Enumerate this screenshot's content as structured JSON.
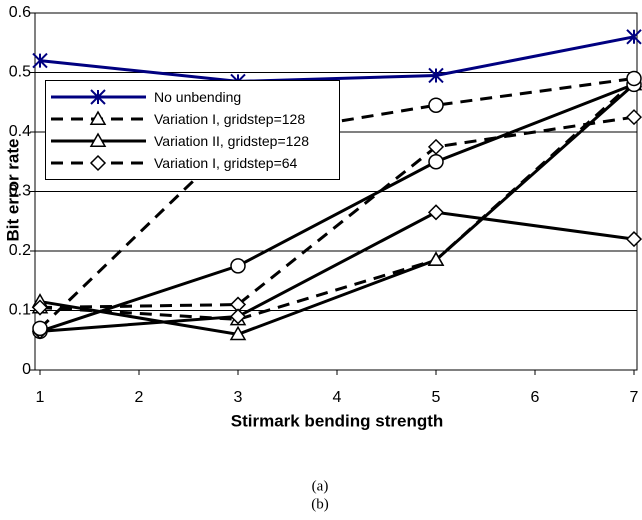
{
  "chart_data": {
    "type": "line",
    "ylabel": "Bit error rate",
    "xlabel": "Stirmark bending strength",
    "x": [
      1,
      3,
      5,
      7
    ],
    "xlim": [
      1,
      7
    ],
    "xticks": [
      1,
      2,
      3,
      4,
      5,
      6,
      7
    ],
    "ylim": [
      0,
      0.6
    ],
    "yticks": [
      0,
      0.1,
      0.2,
      0.3,
      0.4,
      0.5,
      0.6
    ],
    "grid": true,
    "legend": "upper left",
    "series": [
      {
        "name": "No unbending",
        "color": "#000080",
        "marker": "asterisk",
        "dash": false,
        "values": [
          0.52,
          0.485,
          0.495,
          0.56
        ]
      },
      {
        "name": "Variation I, gridstep=128",
        "color": "#000000",
        "marker": "triangle",
        "dash": true,
        "values": [
          0.105,
          0.085,
          0.185,
          0.485
        ]
      },
      {
        "name": "Variation II, gridstep=128",
        "color": "#000000",
        "marker": "triangle",
        "dash": false,
        "values": [
          0.115,
          0.06,
          0.185,
          0.48
        ]
      },
      {
        "name": "Variation I, gridstep=64",
        "color": "#000000",
        "marker": "diamond",
        "dash": true,
        "values": [
          0.105,
          0.11,
          0.375,
          0.425
        ]
      },
      {
        "color": "#000000",
        "marker": "circle",
        "dash": false,
        "values": [
          0.065,
          0.175,
          0.35,
          0.48
        ]
      },
      {
        "color": "#000000",
        "marker": "diamond",
        "dash": false,
        "values": [
          0.065,
          0.09,
          0.265,
          0.22
        ]
      },
      {
        "color": "#000000",
        "marker": "circle",
        "dash": true,
        "values": [
          0.07,
          0.39,
          0.445,
          0.49
        ]
      }
    ]
  },
  "captions": [
    "(a)",
    "(b)"
  ]
}
